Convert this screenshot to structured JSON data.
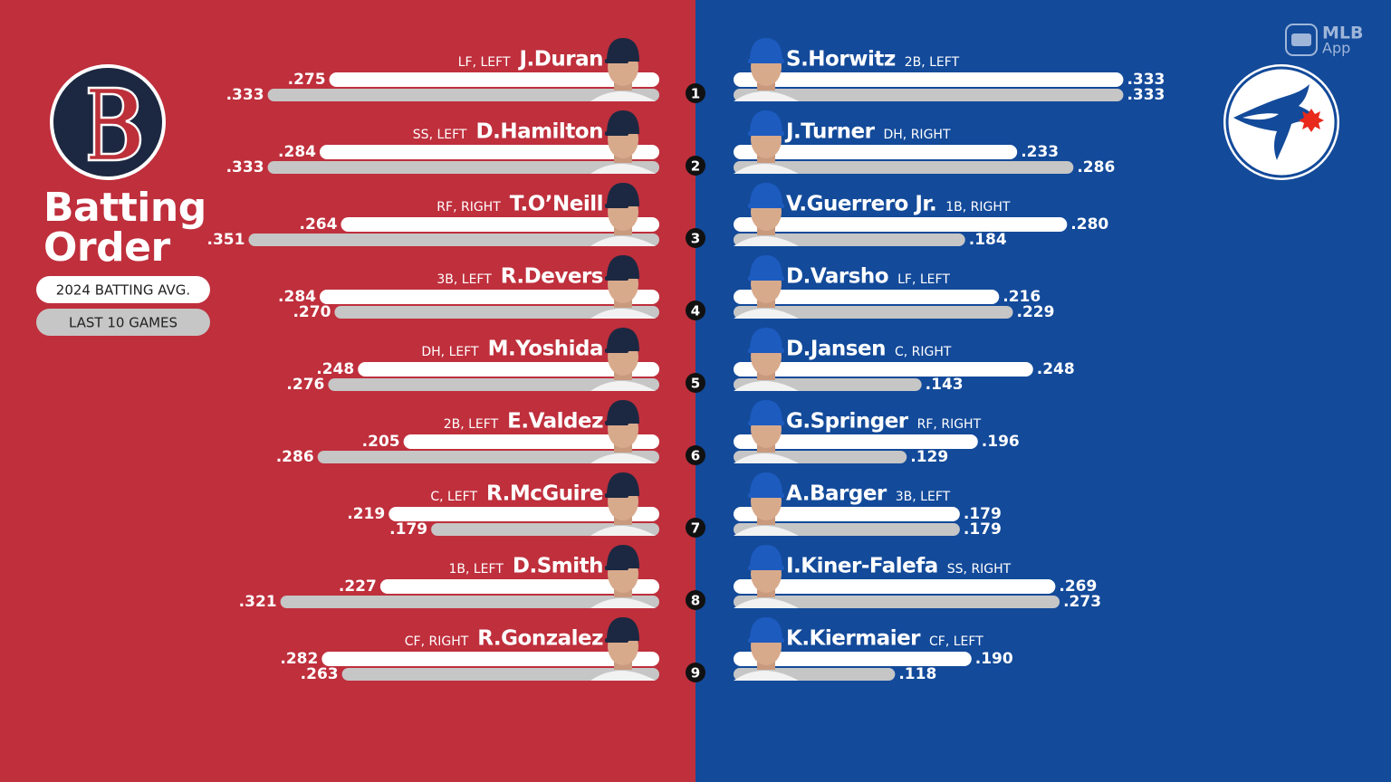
{
  "chart_data": {
    "type": "mirrored-bar",
    "title": "Batting Order",
    "legend": [
      {
        "name": "2024 BATTING AVG.",
        "color": "#ffffff"
      },
      {
        "name": "LAST 10 GAMES",
        "color": "#c6c6c6"
      }
    ],
    "brand": [
      "MLB",
      "App"
    ],
    "ranks": [
      1,
      2,
      3,
      4,
      5,
      6,
      7,
      8,
      9
    ],
    "xlim": [
      0,
      0.4
    ],
    "teams": [
      {
        "color": "#bf2f3c",
        "cap": "#1c2841",
        "players": [
          "J.Duran",
          "D.Hamilton",
          "T.O’Neill",
          "R.Devers",
          "M.Yoshida",
          "E.Valdez",
          "R.McGuire",
          "D.Smith",
          "R.Gonzalez"
        ],
        "positions": [
          "LF, LEFT",
          "SS, LEFT",
          "RF, RIGHT",
          "3B, LEFT",
          "DH, LEFT",
          "2B, LEFT",
          "C, LEFT",
          "1B, LEFT",
          "CF, RIGHT"
        ],
        "series": [
          {
            "values": [
              0.275,
              0.284,
              0.264,
              0.284,
              0.248,
              0.205,
              0.219,
              0.227,
              0.282
            ],
            "value_labels": [
              ".275",
              ".284",
              ".264",
              ".284",
              ".248",
              ".205",
              ".219",
              ".227",
              ".282"
            ]
          },
          {
            "values": [
              0.333,
              0.333,
              0.351,
              0.27,
              0.276,
              0.286,
              0.179,
              0.321,
              0.263
            ],
            "value_labels": [
              ".333",
              ".333",
              ".351",
              ".270",
              ".276",
              ".286",
              ".179",
              ".321",
              ".263"
            ]
          }
        ]
      },
      {
        "color": "#134a9a",
        "cap": "#1d5bbf",
        "players": [
          "S.Horwitz",
          "J.Turner",
          "V.Guerrero Jr.",
          "D.Varsho",
          "D.Jansen",
          "G.Springer",
          "A.Barger",
          "I.Kiner-Falefa",
          "K.Kiermaier"
        ],
        "positions": [
          "2B, LEFT",
          "DH, RIGHT",
          "1B, RIGHT",
          "LF, LEFT",
          "C, RIGHT",
          "RF, RIGHT",
          "3B, LEFT",
          "SS, RIGHT",
          "CF, LEFT"
        ],
        "series": [
          {
            "values": [
              0.333,
              0.233,
              0.28,
              0.216,
              0.248,
              0.196,
              0.179,
              0.269,
              0.19
            ],
            "value_labels": [
              ".333",
              ".233",
              ".280",
              ".216",
              ".248",
              ".196",
              ".179",
              ".269",
              ".190"
            ]
          },
          {
            "values": [
              0.333,
              0.286,
              0.184,
              0.229,
              0.143,
              0.129,
              0.179,
              0.273,
              0.118
            ],
            "value_labels": [
              ".333",
              ".286",
              ".184",
              ".229",
              ".143",
              ".129",
              ".179",
              ".273",
              ".118"
            ]
          }
        ]
      }
    ]
  }
}
